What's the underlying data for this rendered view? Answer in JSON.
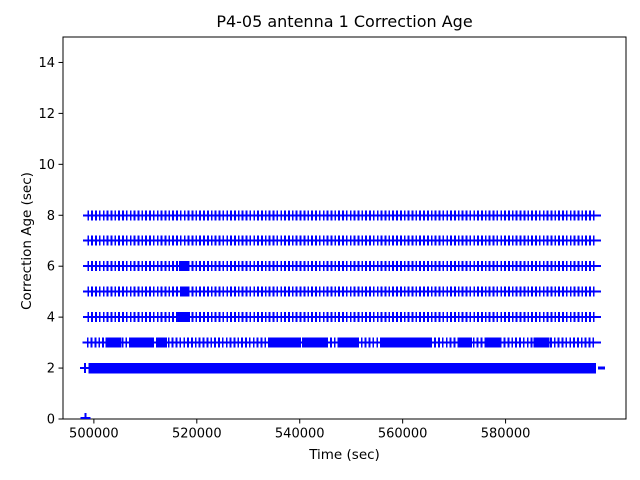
{
  "figure": {
    "title": "P4-05 antenna 1 Correction Age",
    "xlabel": "Time (sec)",
    "ylabel": "Correction Age (sec)"
  },
  "colors": {
    "marker": "#0000ff",
    "axis": "#000000",
    "background": "#ffffff"
  },
  "chart_data": {
    "type": "scatter",
    "title": "P4-05 antenna 1 Correction Age",
    "xlabel": "Time (sec)",
    "ylabel": "Correction Age (sec)",
    "xlim": [
      494000,
      603400
    ],
    "ylim": [
      0,
      15
    ],
    "xticks": [
      500000,
      520000,
      540000,
      560000,
      580000
    ],
    "yticks": [
      0,
      2,
      4,
      6,
      8,
      10,
      12,
      14
    ],
    "grid": false,
    "legend": null,
    "marker": "plus",
    "marker_size_px": 10,
    "marker_color": "#0000ff",
    "description": "Correction age vs time; discrete integer-second age levels form horizontal bands of + markers. The 2-sec level is so dense it renders as a solid bar; levels 3-8 are regularly sampled with occasional dense bursts.",
    "bands": [
      {
        "y": 8,
        "x_start": 498900,
        "x_end": 597600,
        "marker_spacing_sec": 750,
        "solid": false,
        "clusters": []
      },
      {
        "y": 7,
        "x_start": 498900,
        "x_end": 597600,
        "marker_spacing_sec": 750,
        "solid": false,
        "clusters": []
      },
      {
        "y": 6,
        "x_start": 498900,
        "x_end": 597600,
        "marker_spacing_sec": 750,
        "solid": false,
        "clusters": [
          [
            516900,
            518100
          ]
        ]
      },
      {
        "y": 5,
        "x_start": 498900,
        "x_end": 597600,
        "marker_spacing_sec": 750,
        "solid": false,
        "clusters": [
          [
            517100,
            518100
          ]
        ]
      },
      {
        "y": 4,
        "x_start": 498900,
        "x_end": 597600,
        "marker_spacing_sec": 750,
        "solid": false,
        "clusters": [
          [
            516700,
            518300
          ]
        ]
      },
      {
        "y": 3,
        "x_start": 498800,
        "x_end": 597600,
        "marker_spacing_sec": 750,
        "solid": false,
        "clusters": [
          [
            502600,
            504900
          ],
          [
            507200,
            511100
          ],
          [
            512500,
            513800
          ],
          [
            534400,
            539500
          ],
          [
            540800,
            544700
          ],
          [
            548000,
            549200
          ],
          [
            550000,
            551000
          ],
          [
            556200,
            558200
          ],
          [
            558900,
            561000
          ],
          [
            561800,
            565300
          ],
          [
            571200,
            573100
          ],
          [
            576600,
            578500
          ],
          [
            585800,
            588100
          ]
        ]
      },
      {
        "y": 2,
        "x_start": 499000,
        "x_end": 597600,
        "marker_spacing_sec": 60,
        "solid": true,
        "clusters": []
      }
    ],
    "isolated_points": [
      {
        "x": 498300,
        "y": 2,
        "style": "plus"
      },
      {
        "x": 498400,
        "y": 0.04,
        "style": "plus"
      },
      {
        "x": 598600,
        "y": 2,
        "style": "dash"
      }
    ]
  }
}
